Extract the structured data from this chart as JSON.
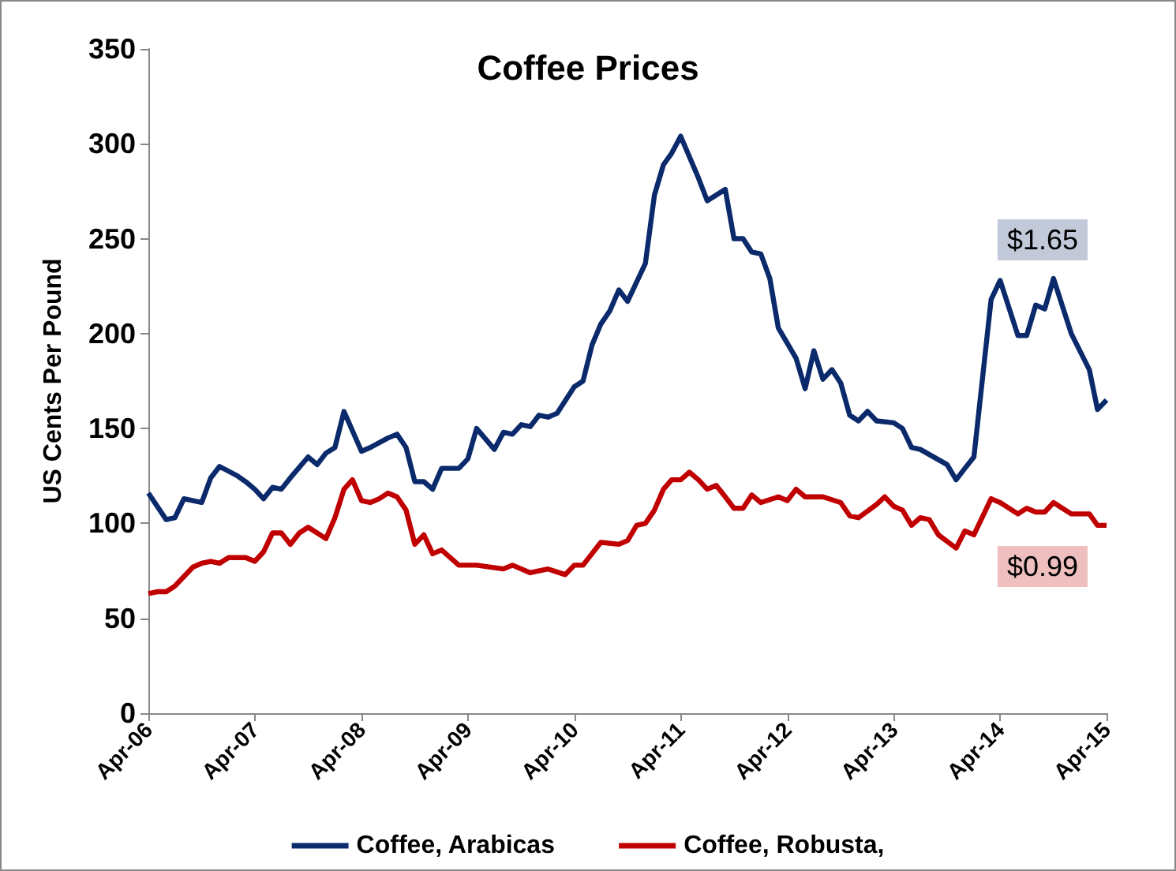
{
  "chart_data": {
    "type": "line",
    "title": "Coffee Prices",
    "ylabel": "US Cents Per Pound",
    "series": [
      {
        "name": "Coffee, Arabicas",
        "color": "#0b2a6b",
        "x": [
          "2006-04",
          "2006-06",
          "2006-07",
          "2006-08",
          "2006-10",
          "2006-11",
          "2006-12",
          "2007-02",
          "2007-03",
          "2007-04",
          "2007-05",
          "2007-06",
          "2007-07",
          "2007-08",
          "2007-10",
          "2007-11",
          "2007-12",
          "2008-01",
          "2008-02",
          "2008-04",
          "2008-05",
          "2008-07",
          "2008-08",
          "2008-09",
          "2008-10",
          "2008-11",
          "2008-12",
          "2009-01",
          "2009-03",
          "2009-04",
          "2009-05",
          "2009-07",
          "2009-08",
          "2009-09",
          "2009-10",
          "2009-11",
          "2009-12",
          "2010-01",
          "2010-02",
          "2010-04",
          "2010-05",
          "2010-06",
          "2010-07",
          "2010-08",
          "2010-09",
          "2010-10",
          "2010-12",
          "2011-01",
          "2011-02",
          "2011-03",
          "2011-04",
          "2011-06",
          "2011-07",
          "2011-08",
          "2011-09",
          "2011-10",
          "2011-11",
          "2011-12",
          "2012-01",
          "2012-02",
          "2012-03",
          "2012-05",
          "2012-06",
          "2012-07",
          "2012-08",
          "2012-09",
          "2012-10",
          "2012-11",
          "2012-12",
          "2013-01",
          "2013-02",
          "2013-04",
          "2013-05",
          "2013-06",
          "2013-07",
          "2013-10",
          "2013-11",
          "2013-12",
          "2014-01",
          "2014-03",
          "2014-04",
          "2014-06",
          "2014-07",
          "2014-08",
          "2014-09",
          "2014-10",
          "2014-12",
          "2015-02",
          "2015-03",
          "2015-04"
        ],
        "values": [
          116,
          102,
          103,
          113,
          111,
          124,
          130,
          125,
          122,
          118,
          113,
          119,
          118,
          124,
          135,
          131,
          137,
          140,
          159,
          138,
          140,
          145,
          147,
          140,
          122,
          122,
          118,
          129,
          129,
          134,
          150,
          139,
          148,
          147,
          152,
          151,
          157,
          156,
          158,
          172,
          175,
          194,
          205,
          212,
          223,
          217,
          237,
          273,
          289,
          295,
          304,
          282,
          270,
          273,
          276,
          250,
          250,
          243,
          242,
          229,
          203,
          187,
          171,
          191,
          176,
          181,
          174,
          157,
          154,
          159,
          154,
          153,
          150,
          140,
          139,
          131,
          123,
          129,
          135,
          218,
          228,
          199,
          199,
          215,
          213,
          229,
          200,
          181,
          160,
          165
        ]
      },
      {
        "name": "Coffee, Robusta,",
        "color": "#c00000",
        "x": [
          "2006-04",
          "2006-05",
          "2006-06",
          "2006-07",
          "2006-09",
          "2006-10",
          "2006-11",
          "2006-12",
          "2007-01",
          "2007-03",
          "2007-04",
          "2007-05",
          "2007-06",
          "2007-07",
          "2007-08",
          "2007-09",
          "2007-10",
          "2007-12",
          "2008-01",
          "2008-02",
          "2008-03",
          "2008-04",
          "2008-05",
          "2008-06",
          "2008-07",
          "2008-08",
          "2008-09",
          "2008-10",
          "2008-11",
          "2008-12",
          "2009-01",
          "2009-03",
          "2009-05",
          "2009-08",
          "2009-09",
          "2009-11",
          "2010-01",
          "2010-03",
          "2010-04",
          "2010-05",
          "2010-07",
          "2010-09",
          "2010-10",
          "2010-11",
          "2010-12",
          "2011-01",
          "2011-02",
          "2011-03",
          "2011-04",
          "2011-05",
          "2011-06",
          "2011-07",
          "2011-08",
          "2011-09",
          "2011-10",
          "2011-11",
          "2011-12",
          "2012-01",
          "2012-03",
          "2012-04",
          "2012-05",
          "2012-06",
          "2012-08",
          "2012-10",
          "2012-11",
          "2012-12",
          "2013-02",
          "2013-03",
          "2013-04",
          "2013-05",
          "2013-06",
          "2013-07",
          "2013-08",
          "2013-09",
          "2013-11",
          "2013-12",
          "2014-01",
          "2014-03",
          "2014-04",
          "2014-06",
          "2014-07",
          "2014-08",
          "2014-09",
          "2014-10",
          "2014-12",
          "2015-01",
          "2015-02",
          "2015-03",
          "2015-04"
        ],
        "values": [
          63,
          64,
          64,
          67,
          77,
          79,
          80,
          79,
          82,
          82,
          80,
          85,
          95,
          95,
          89,
          95,
          98,
          92,
          103,
          118,
          123,
          112,
          111,
          113,
          116,
          114,
          107,
          89,
          94,
          84,
          86,
          78,
          78,
          76,
          78,
          74,
          76,
          73,
          78,
          78,
          90,
          89,
          91,
          99,
          100,
          107,
          118,
          123,
          123,
          127,
          123,
          118,
          120,
          114,
          108,
          108,
          115,
          111,
          114,
          112,
          118,
          114,
          114,
          111,
          104,
          103,
          110,
          114,
          109,
          107,
          99,
          103,
          102,
          94,
          87,
          96,
          94,
          113,
          111,
          105,
          108,
          106,
          106,
          111,
          105,
          105,
          105,
          99,
          99
        ]
      }
    ],
    "xlim": [
      "2006-04",
      "2015-04"
    ],
    "xticks": [
      {
        "value": "2006-04",
        "label": "Apr-06"
      },
      {
        "value": "2007-04",
        "label": "Apr-07"
      },
      {
        "value": "2008-04",
        "label": "Apr-08"
      },
      {
        "value": "2009-04",
        "label": "Apr-09"
      },
      {
        "value": "2010-04",
        "label": "Apr-10"
      },
      {
        "value": "2011-04",
        "label": "Apr-11"
      },
      {
        "value": "2012-04",
        "label": "Apr-12"
      },
      {
        "value": "2013-04",
        "label": "Apr-13"
      },
      {
        "value": "2014-04",
        "label": "Apr-14"
      },
      {
        "value": "2015-04",
        "label": "Apr-15"
      }
    ],
    "ylim": [
      0,
      350
    ],
    "yticks": [
      0,
      50,
      100,
      150,
      200,
      250,
      300,
      350
    ],
    "annotations": [
      "$1.65",
      "$0.99"
    ],
    "grid": false,
    "legend": "bottom",
    "marker": "none",
    "line_style": "solid"
  }
}
